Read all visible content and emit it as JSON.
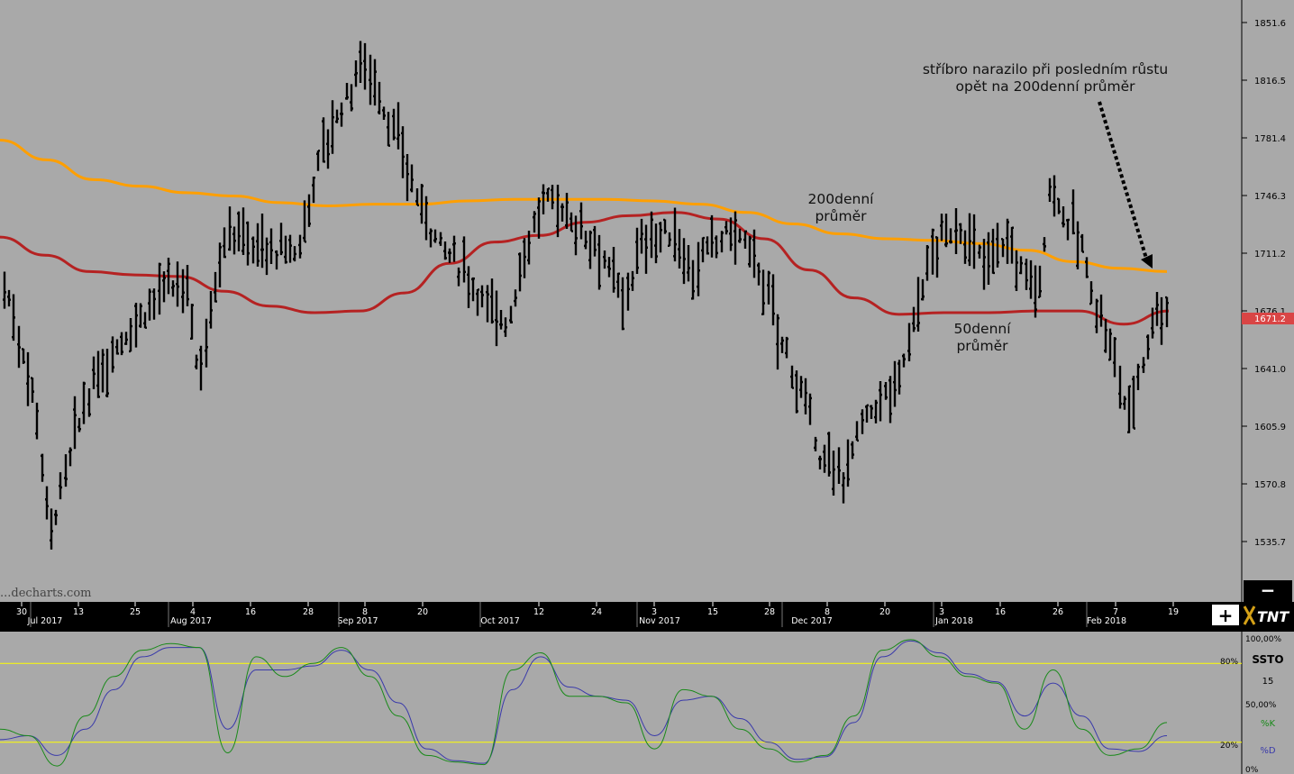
{
  "colors": {
    "chart_bg": "#a9a9a9",
    "ma200": "#ff9f00",
    "ma50": "#b52222",
    "price_bars": "#000000",
    "stoch_k": "#1a8a1a",
    "stoch_d": "#3a3aaa",
    "osc_levels": "#ffff00",
    "last_price_tag": "#d94545"
  },
  "watermark": "...decharts.com",
  "annotations": {
    "ma200_label": [
      "200denní",
      "průměr"
    ],
    "ma50_label": [
      "50denní",
      "průměr"
    ],
    "note": [
      "stříbro narazilo při posledním růstu",
      "opět na 200denní průměr"
    ]
  },
  "controls": {
    "zoom_out": "−",
    "zoom_in": "+",
    "logo": "TNT"
  },
  "last_price": "1671.2",
  "oscillator": {
    "name": "SSTO",
    "period": "15",
    "levels_right": [
      "100,00%",
      "50,00%",
      "0%"
    ],
    "k_label": "%K",
    "d_label": "%D",
    "level80_label": "80%",
    "level20_label": "20%"
  },
  "chart_data": [
    {
      "type": "ohlc",
      "ylim": [
        1510,
        1862
      ],
      "y_ticks": [
        "1851.6",
        "1816.5",
        "1781.4",
        "1746.3",
        "1711.2",
        "1676.1",
        "1641.0",
        "1605.9",
        "1570.8",
        "1535.7"
      ],
      "x_ticks": [
        "30",
        "Jul 2017",
        "13",
        "25",
        "4",
        "Aug 2017",
        "16",
        "28",
        "8",
        "Sep 2017",
        "20",
        "Oct 2017",
        "12",
        "24",
        "3",
        "Nov 2017",
        "15",
        "28",
        "Dec 2017",
        "8",
        "20",
        "3",
        "Jan 2018",
        "16",
        "26",
        "7",
        "Feb 2018",
        "19"
      ],
      "series": [
        {
          "name": "200denní průměr",
          "values": [
            1780,
            1768,
            1756,
            1752,
            1748,
            1746,
            1742,
            1740,
            1741,
            1741,
            1743,
            1744,
            1744,
            1744,
            1743,
            1741,
            1736,
            1729,
            1723,
            1720,
            1719,
            1717,
            1713,
            1706,
            1702,
            1700
          ]
        },
        {
          "name": "50denní průměr",
          "values": [
            1721,
            1710,
            1700,
            1698,
            1697,
            1688,
            1679,
            1675,
            1676,
            1687,
            1705,
            1718,
            1722,
            1730,
            1734,
            1736,
            1732,
            1720,
            1701,
            1684,
            1674,
            1675,
            1675,
            1676,
            1676,
            1668,
            1676
          ]
        }
      ]
    },
    {
      "type": "line",
      "ylim": [
        0,
        100
      ],
      "series": [
        {
          "name": "%K",
          "values": [
            30,
            25,
            2,
            40,
            70,
            90,
            95,
            92,
            12,
            85,
            70,
            80,
            92,
            70,
            40,
            10,
            5,
            3,
            75,
            88,
            55,
            55,
            50,
            15,
            60,
            55,
            30,
            15,
            5,
            10,
            40,
            90,
            98,
            85,
            70,
            65,
            30,
            75,
            30,
            10,
            15,
            35
          ]
        },
        {
          "name": "%D",
          "values": [
            22,
            25,
            10,
            30,
            60,
            85,
            92,
            92,
            30,
            75,
            75,
            78,
            90,
            75,
            50,
            15,
            6,
            4,
            60,
            85,
            62,
            55,
            52,
            25,
            52,
            55,
            38,
            20,
            7,
            9,
            35,
            85,
            97,
            88,
            72,
            66,
            40,
            65,
            40,
            15,
            13,
            25
          ]
        }
      ]
    }
  ]
}
